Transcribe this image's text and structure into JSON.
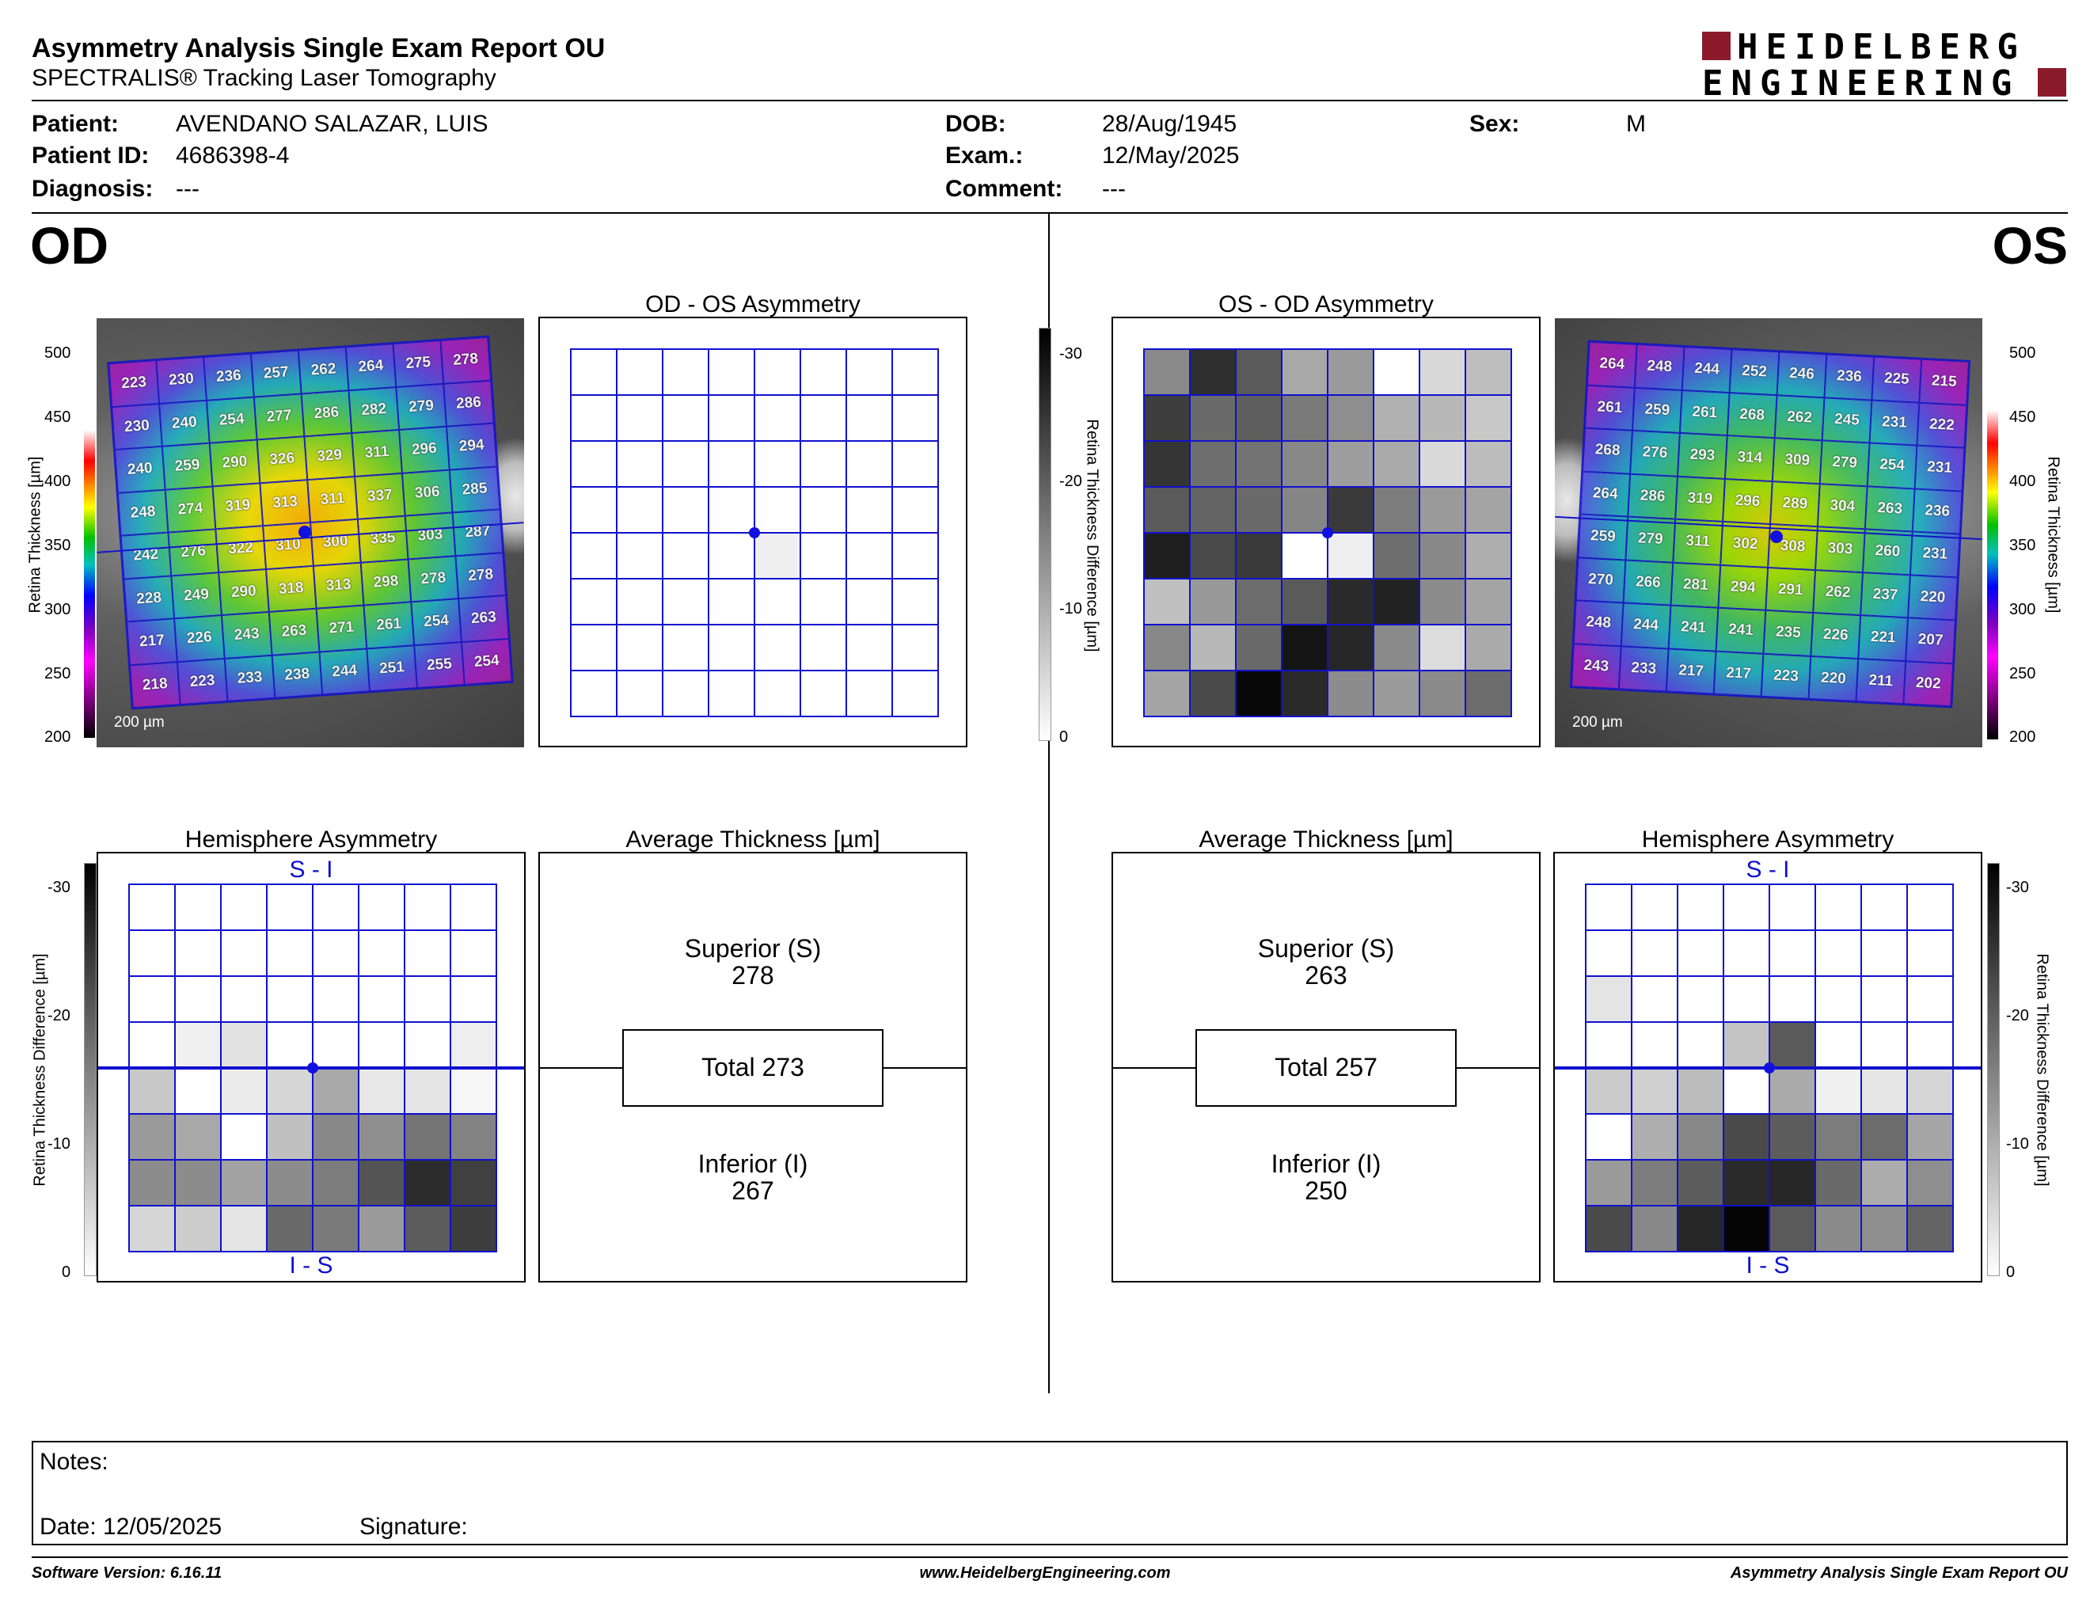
{
  "header": {
    "title": "Asymmetry Analysis Single Exam Report OU",
    "subtitle": "SPECTRALIS® Tracking Laser Tomography",
    "logo_line1": "HEIDELBERG",
    "logo_line2": "ENGINEERING"
  },
  "patient": {
    "patient_label": "Patient:",
    "patient_value": "AVENDANO SALAZAR, LUIS",
    "id_label": "Patient ID:",
    "id_value": "4686398-4",
    "diagnosis_label": "Diagnosis:",
    "diagnosis_value": "---",
    "dob_label": "DOB:",
    "dob_value": "28/Aug/1945",
    "exam_label": "Exam.:",
    "exam_value": "12/May/2025",
    "comment_label": "Comment:",
    "comment_value": "---",
    "sex_label": "Sex:",
    "sex_value": "M"
  },
  "eyes": {
    "od": "OD",
    "os": "OS"
  },
  "panels": {
    "od_os_asym": "OD - OS Asymmetry",
    "os_od_asym": "OS - OD Asymmetry",
    "hemi": "Hemisphere Asymmetry",
    "avg": "Average Thickness [µm]",
    "si": "S - I",
    "is": "I - S",
    "scale": "200 µm"
  },
  "axes": {
    "thickness_label": "Retina  Thickness [µm]",
    "diff_label": "Retina Thickness Difference [µm]",
    "thickness_ticks": [
      "500",
      "450",
      "400",
      "350",
      "300",
      "250",
      "200"
    ],
    "diff_ticks": [
      "-30",
      "-20",
      "-10",
      "0"
    ]
  },
  "od_thickness": [
    [
      "223",
      "230",
      "236",
      "257",
      "262",
      "264",
      "275",
      "278"
    ],
    [
      "230",
      "240",
      "254",
      "277",
      "286",
      "282",
      "279",
      "286"
    ],
    [
      "240",
      "259",
      "290",
      "326",
      "329",
      "311",
      "296",
      "294"
    ],
    [
      "248",
      "274",
      "319",
      "313",
      "311",
      "337",
      "306",
      "285"
    ],
    [
      "242",
      "276",
      "322",
      "310",
      "300",
      "335",
      "303",
      "287"
    ],
    [
      "228",
      "249",
      "290",
      "318",
      "313",
      "298",
      "278",
      "278"
    ],
    [
      "217",
      "226",
      "243",
      "263",
      "271",
      "261",
      "254",
      "263"
    ],
    [
      "218",
      "223",
      "233",
      "238",
      "244",
      "251",
      "255",
      "254"
    ]
  ],
  "os_thickness": [
    [
      "264",
      "248",
      "244",
      "252",
      "246",
      "236",
      "225",
      "215"
    ],
    [
      "261",
      "259",
      "261",
      "268",
      "262",
      "245",
      "231",
      "222"
    ],
    [
      "268",
      "276",
      "293",
      "314",
      "309",
      "279",
      "254",
      "231"
    ],
    [
      "264",
      "286",
      "319",
      "296",
      "289",
      "304",
      "263",
      "236"
    ],
    [
      "259",
      "279",
      "311",
      "302",
      "308",
      "303",
      "260",
      "231"
    ],
    [
      "270",
      "266",
      "281",
      "294",
      "291",
      "262",
      "237",
      "220"
    ],
    [
      "248",
      "244",
      "241",
      "241",
      "235",
      "226",
      "221",
      "207"
    ],
    [
      "243",
      "233",
      "217",
      "217",
      "223",
      "220",
      "211",
      "202"
    ]
  ],
  "od_os_diff_colors": [
    [
      "#fff",
      "#fff",
      "#fff",
      "#fff",
      "#fff",
      "#fff",
      "#fff",
      "#fff"
    ],
    [
      "#fff",
      "#fff",
      "#fff",
      "#fff",
      "#fff",
      "#fff",
      "#fff",
      "#fff"
    ],
    [
      "#fff",
      "#fff",
      "#fff",
      "#fff",
      "#fff",
      "#fff",
      "#fff",
      "#fff"
    ],
    [
      "#fff",
      "#fff",
      "#fff",
      "#fff",
      "#fff",
      "#fff",
      "#fff",
      "#fff"
    ],
    [
      "#fff",
      "#fff",
      "#fff",
      "#fff",
      "#efefef",
      "#fff",
      "#fff",
      "#fff"
    ],
    [
      "#fff",
      "#fff",
      "#fff",
      "#fff",
      "#fff",
      "#fff",
      "#fff",
      "#fff"
    ],
    [
      "#fff",
      "#fff",
      "#fff",
      "#fff",
      "#fff",
      "#fff",
      "#fff",
      "#fff"
    ],
    [
      "#fff",
      "#fff",
      "#fff",
      "#fff",
      "#fff",
      "#fff",
      "#fff",
      "#fff"
    ]
  ],
  "os_od_diff_colors": [
    [
      "#8a8a8a",
      "#2e2e2e",
      "#5a5a5a",
      "#a8a8a8",
      "#9a9a9a",
      "#fff",
      "#d8d8d8",
      "#bdbdbd"
    ],
    [
      "#3e3e3e",
      "#6a6a6a",
      "#5e5e5e",
      "#7a7a7a",
      "#8e8e8e",
      "#b0b0b0",
      "#b8b8b8",
      "#c8c8c8"
    ],
    [
      "#353535",
      "#6e6e6e",
      "#737373",
      "#888888",
      "#9e9e9e",
      "#aaaaaa",
      "#dadada",
      "#bcbcbc"
    ],
    [
      "#5a5a5a",
      "#646464",
      "#6a6a6a",
      "#858585",
      "#3a3a3a",
      "#7c7c7c",
      "#9a9a9a",
      "#a4a4a4"
    ],
    [
      "#1e1e1e",
      "#4a4a4a",
      "#3a3a3a",
      "#ffffff",
      "#eeeeee",
      "#6e6e6e",
      "#888888",
      "#aeaeae"
    ],
    [
      "#c0c0c0",
      "#999999",
      "#6c6c6c",
      "#5a5a5a",
      "#2a2a2a",
      "#222222",
      "#8c8c8c",
      "#a4a4a4"
    ],
    [
      "#888888",
      "#b8b8b8",
      "#6a6a6a",
      "#141414",
      "#262626",
      "#8a8a8a",
      "#dcdcdc",
      "#aaaaaa"
    ],
    [
      "#a4a4a4",
      "#4a4a4a",
      "#080808",
      "#2a2a2a",
      "#8c8c8c",
      "#9a9a9a",
      "#8a8a8a",
      "#6c6c6c"
    ]
  ],
  "od_hemi_colors": [
    [
      "#fff",
      "#fff",
      "#fff",
      "#fff",
      "#fff",
      "#fff",
      "#fff",
      "#fff"
    ],
    [
      "#fff",
      "#fff",
      "#fff",
      "#fff",
      "#fff",
      "#fff",
      "#fff",
      "#fff"
    ],
    [
      "#fff",
      "#fff",
      "#fff",
      "#fff",
      "#fff",
      "#fff",
      "#fff",
      "#fff"
    ],
    [
      "#fff",
      "#f0f0f0",
      "#e2e2e2",
      "#fff",
      "#fff",
      "#fff",
      "#fff",
      "#eeeeee"
    ],
    [
      "#c8c8c8",
      "#ffffff",
      "#ececec",
      "#d6d6d6",
      "#a8a8a8",
      "#e8e8e8",
      "#e4e4e4",
      "#f6f6f6"
    ],
    [
      "#9a9a9a",
      "#a8a8a8",
      "#ffffff",
      "#c0c0c0",
      "#888888",
      "#8e8e8e",
      "#747474",
      "#838383"
    ],
    [
      "#8c8c8c",
      "#8c8c8c",
      "#a2a2a2",
      "#8c8c8c",
      "#7c7c7c",
      "#545454",
      "#2c2c2c",
      "#404040"
    ],
    [
      "#d6d6d6",
      "#cccccc",
      "#e4e4e4",
      "#6a6a6a",
      "#7a7a7a",
      "#9a9a9a",
      "#5c5c5c",
      "#3e3e3e"
    ]
  ],
  "os_hemi_colors": [
    [
      "#fff",
      "#fff",
      "#fff",
      "#fff",
      "#fff",
      "#fff",
      "#fff",
      "#fff"
    ],
    [
      "#fff",
      "#fff",
      "#fff",
      "#fff",
      "#fff",
      "#fff",
      "#fff",
      "#fff"
    ],
    [
      "#e4e4e4",
      "#fff",
      "#fff",
      "#fff",
      "#fff",
      "#fff",
      "#fff",
      "#fff"
    ],
    [
      "#fff",
      "#fff",
      "#fff",
      "#c4c4c4",
      "#5a5a5a",
      "#fff",
      "#fff",
      "#fff"
    ],
    [
      "#cacaca",
      "#d0d0d0",
      "#bcbcbc",
      "#fff",
      "#aaaaaa",
      "#f0f0f0",
      "#e6e6e6",
      "#d6d6d6"
    ],
    [
      "#fff",
      "#aeaeae",
      "#888888",
      "#4a4a4a",
      "#5c5c5c",
      "#7c7c7c",
      "#6c6c6c",
      "#a6a6a6"
    ],
    [
      "#9a9a9a",
      "#7c7c7c",
      "#5c5c5c",
      "#2a2a2a",
      "#262626",
      "#6a6a6a",
      "#acacac",
      "#8e8e8e"
    ],
    [
      "#4a4a4a",
      "#888888",
      "#262626",
      "#050505",
      "#5a5a5a",
      "#8a8a8a",
      "#8e8e8e",
      "#646464"
    ]
  ],
  "od_avg": {
    "sup_label": "Superior (S)",
    "sup_value": "278",
    "total": "Total 273",
    "inf_label": "Inferior (I)",
    "inf_value": "267"
  },
  "os_avg": {
    "sup_label": "Superior (S)",
    "sup_value": "263",
    "total": "Total 257",
    "inf_label": "Inferior (I)",
    "inf_value": "250"
  },
  "notes": {
    "label": "Notes:",
    "date": "Date: 12/05/2025",
    "signature": "Signature:"
  },
  "footer": {
    "version": "Software Version: 6.16.11",
    "url": "www.HeidelbergEngineering.com",
    "report": "Asymmetry Analysis Single Exam Report OU"
  },
  "colors": {
    "grid": "#1010d0",
    "logo_red": "#8b1a2b"
  }
}
